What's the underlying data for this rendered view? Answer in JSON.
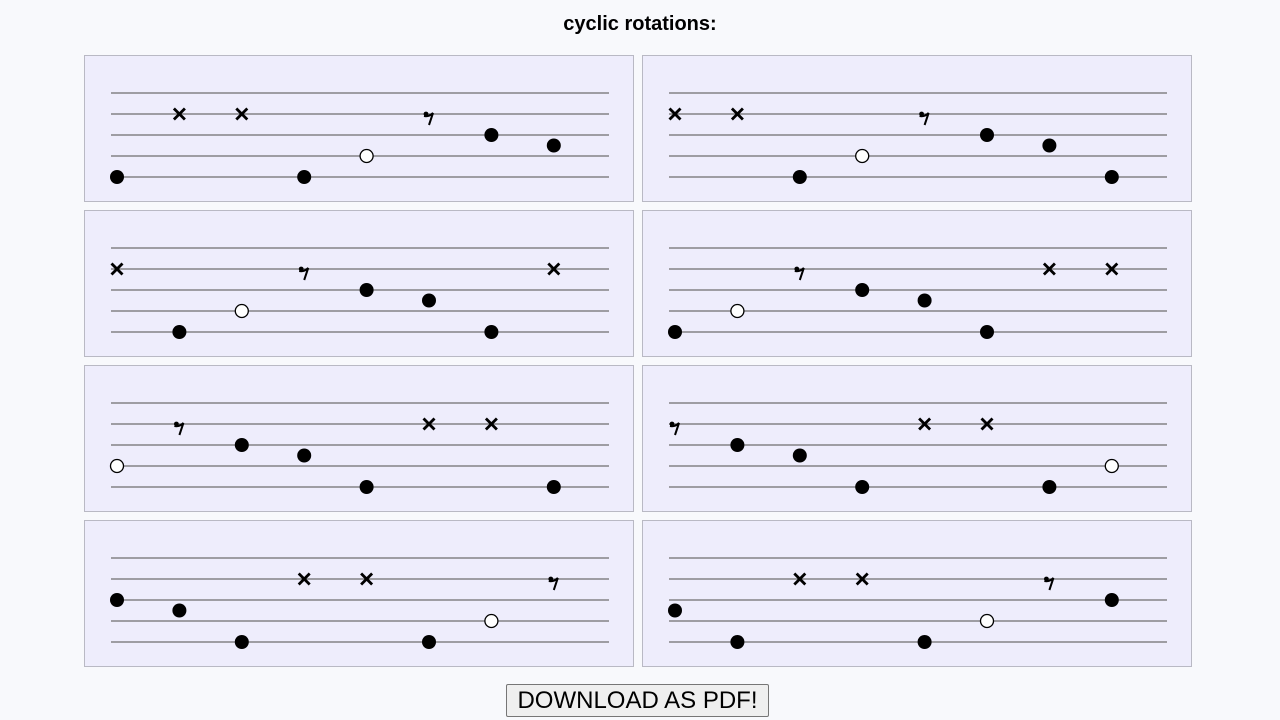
{
  "page": {
    "title": "cyclic rotations:",
    "download_label": "DOWNLOAD AS PDF!"
  },
  "colors": {
    "background": "#f8f9fc",
    "panel_fill": "#eeedfc",
    "panel_border": "#b9b9c4",
    "staff_line": "#6e6e6e",
    "note": "#000000",
    "open_note_fill": "#ffffff"
  },
  "staff": {
    "line_count": 5,
    "note_types": [
      "filled-note",
      "open-note",
      "x-note",
      "eighth-rest"
    ]
  },
  "rotations": [
    {
      "notes": [
        {
          "type": "filled",
          "pos": 1
        },
        {
          "type": "x",
          "pos": 7
        },
        {
          "type": "x",
          "pos": 7
        },
        {
          "type": "filled",
          "pos": 1
        },
        {
          "type": "open",
          "pos": 3
        },
        {
          "type": "rest",
          "pos": 7
        },
        {
          "type": "filled",
          "pos": 5
        },
        {
          "type": "filled",
          "pos": 4
        }
      ]
    },
    {
      "notes": [
        {
          "type": "x",
          "pos": 7
        },
        {
          "type": "x",
          "pos": 7
        },
        {
          "type": "filled",
          "pos": 1
        },
        {
          "type": "open",
          "pos": 3
        },
        {
          "type": "rest",
          "pos": 7
        },
        {
          "type": "filled",
          "pos": 5
        },
        {
          "type": "filled",
          "pos": 4
        },
        {
          "type": "filled",
          "pos": 1
        }
      ]
    },
    {
      "notes": [
        {
          "type": "x",
          "pos": 7
        },
        {
          "type": "filled",
          "pos": 1
        },
        {
          "type": "open",
          "pos": 3
        },
        {
          "type": "rest",
          "pos": 7
        },
        {
          "type": "filled",
          "pos": 5
        },
        {
          "type": "filled",
          "pos": 4
        },
        {
          "type": "filled",
          "pos": 1
        },
        {
          "type": "x",
          "pos": 7
        }
      ]
    },
    {
      "notes": [
        {
          "type": "filled",
          "pos": 1
        },
        {
          "type": "open",
          "pos": 3
        },
        {
          "type": "rest",
          "pos": 7
        },
        {
          "type": "filled",
          "pos": 5
        },
        {
          "type": "filled",
          "pos": 4
        },
        {
          "type": "filled",
          "pos": 1
        },
        {
          "type": "x",
          "pos": 7
        },
        {
          "type": "x",
          "pos": 7
        }
      ]
    },
    {
      "notes": [
        {
          "type": "open",
          "pos": 3
        },
        {
          "type": "rest",
          "pos": 7
        },
        {
          "type": "filled",
          "pos": 5
        },
        {
          "type": "filled",
          "pos": 4
        },
        {
          "type": "filled",
          "pos": 1
        },
        {
          "type": "x",
          "pos": 7
        },
        {
          "type": "x",
          "pos": 7
        },
        {
          "type": "filled",
          "pos": 1
        }
      ]
    },
    {
      "notes": [
        {
          "type": "rest",
          "pos": 7
        },
        {
          "type": "filled",
          "pos": 5
        },
        {
          "type": "filled",
          "pos": 4
        },
        {
          "type": "filled",
          "pos": 1
        },
        {
          "type": "x",
          "pos": 7
        },
        {
          "type": "x",
          "pos": 7
        },
        {
          "type": "filled",
          "pos": 1
        },
        {
          "type": "open",
          "pos": 3
        }
      ]
    },
    {
      "notes": [
        {
          "type": "filled",
          "pos": 5
        },
        {
          "type": "filled",
          "pos": 4
        },
        {
          "type": "filled",
          "pos": 1
        },
        {
          "type": "x",
          "pos": 7
        },
        {
          "type": "x",
          "pos": 7
        },
        {
          "type": "filled",
          "pos": 1
        },
        {
          "type": "open",
          "pos": 3
        },
        {
          "type": "rest",
          "pos": 7
        }
      ]
    },
    {
      "notes": [
        {
          "type": "filled",
          "pos": 4
        },
        {
          "type": "filled",
          "pos": 1
        },
        {
          "type": "x",
          "pos": 7
        },
        {
          "type": "x",
          "pos": 7
        },
        {
          "type": "filled",
          "pos": 1
        },
        {
          "type": "open",
          "pos": 3
        },
        {
          "type": "rest",
          "pos": 7
        },
        {
          "type": "filled",
          "pos": 5
        }
      ]
    }
  ]
}
